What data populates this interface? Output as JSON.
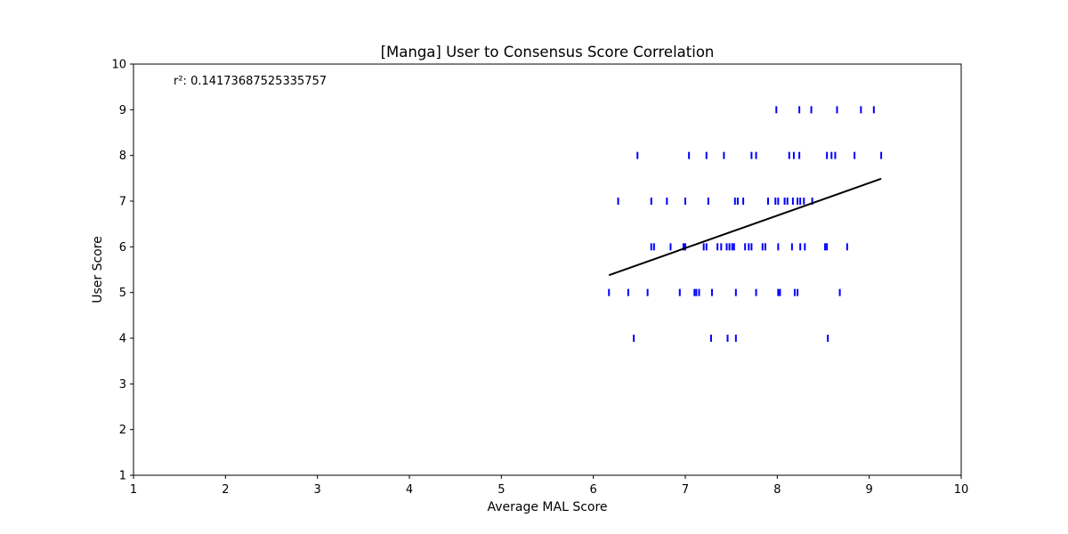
{
  "chart_data": {
    "type": "scatter",
    "title": "[Manga] User to Consensus Score Correlation",
    "xlabel": "Average MAL Score",
    "ylabel": "User Score",
    "xlim": [
      1,
      10
    ],
    "ylim": [
      1,
      10
    ],
    "xticks": [
      1,
      2,
      3,
      4,
      5,
      6,
      7,
      8,
      9,
      10
    ],
    "yticks": [
      1,
      2,
      3,
      4,
      5,
      6,
      7,
      8,
      9,
      10
    ],
    "grid": false,
    "annotation": "r²: 0.14173687525335757",
    "marker": "|",
    "marker_color": "#0000ff",
    "line_color": "#000000",
    "points": [
      {
        "x": 7.99,
        "y": 9
      },
      {
        "x": 8.24,
        "y": 9
      },
      {
        "x": 8.37,
        "y": 9
      },
      {
        "x": 8.65,
        "y": 9
      },
      {
        "x": 8.91,
        "y": 9
      },
      {
        "x": 9.05,
        "y": 9
      },
      {
        "x": 6.48,
        "y": 8
      },
      {
        "x": 7.04,
        "y": 8
      },
      {
        "x": 7.23,
        "y": 8
      },
      {
        "x": 7.42,
        "y": 8
      },
      {
        "x": 7.72,
        "y": 8
      },
      {
        "x": 7.77,
        "y": 8
      },
      {
        "x": 8.13,
        "y": 8
      },
      {
        "x": 8.18,
        "y": 8
      },
      {
        "x": 8.24,
        "y": 8
      },
      {
        "x": 8.54,
        "y": 8
      },
      {
        "x": 8.59,
        "y": 8
      },
      {
        "x": 8.63,
        "y": 8
      },
      {
        "x": 8.84,
        "y": 8
      },
      {
        "x": 9.13,
        "y": 8
      },
      {
        "x": 6.27,
        "y": 7
      },
      {
        "x": 6.63,
        "y": 7
      },
      {
        "x": 6.8,
        "y": 7
      },
      {
        "x": 7.0,
        "y": 7
      },
      {
        "x": 7.25,
        "y": 7
      },
      {
        "x": 7.54,
        "y": 7
      },
      {
        "x": 7.57,
        "y": 7
      },
      {
        "x": 7.63,
        "y": 7
      },
      {
        "x": 7.9,
        "y": 7
      },
      {
        "x": 7.98,
        "y": 7
      },
      {
        "x": 8.01,
        "y": 7
      },
      {
        "x": 8.08,
        "y": 7
      },
      {
        "x": 8.11,
        "y": 7
      },
      {
        "x": 8.17,
        "y": 7
      },
      {
        "x": 8.22,
        "y": 7
      },
      {
        "x": 8.25,
        "y": 7
      },
      {
        "x": 8.29,
        "y": 7
      },
      {
        "x": 8.38,
        "y": 7
      },
      {
        "x": 6.63,
        "y": 6
      },
      {
        "x": 6.66,
        "y": 6
      },
      {
        "x": 6.84,
        "y": 6
      },
      {
        "x": 6.98,
        "y": 6
      },
      {
        "x": 7.0,
        "y": 6
      },
      {
        "x": 7.2,
        "y": 6
      },
      {
        "x": 7.23,
        "y": 6
      },
      {
        "x": 7.35,
        "y": 6
      },
      {
        "x": 7.39,
        "y": 6
      },
      {
        "x": 7.45,
        "y": 6
      },
      {
        "x": 7.48,
        "y": 6
      },
      {
        "x": 7.51,
        "y": 6
      },
      {
        "x": 7.53,
        "y": 6
      },
      {
        "x": 7.65,
        "y": 6
      },
      {
        "x": 7.69,
        "y": 6
      },
      {
        "x": 7.72,
        "y": 6
      },
      {
        "x": 7.84,
        "y": 6
      },
      {
        "x": 7.87,
        "y": 6
      },
      {
        "x": 8.01,
        "y": 6
      },
      {
        "x": 8.16,
        "y": 6
      },
      {
        "x": 8.25,
        "y": 6
      },
      {
        "x": 8.3,
        "y": 6
      },
      {
        "x": 8.52,
        "y": 6
      },
      {
        "x": 8.54,
        "y": 6
      },
      {
        "x": 8.76,
        "y": 6
      },
      {
        "x": 6.17,
        "y": 5
      },
      {
        "x": 6.38,
        "y": 5
      },
      {
        "x": 6.59,
        "y": 5
      },
      {
        "x": 6.94,
        "y": 5
      },
      {
        "x": 7.1,
        "y": 5
      },
      {
        "x": 7.12,
        "y": 5
      },
      {
        "x": 7.15,
        "y": 5
      },
      {
        "x": 7.29,
        "y": 5
      },
      {
        "x": 7.55,
        "y": 5
      },
      {
        "x": 7.77,
        "y": 5
      },
      {
        "x": 8.01,
        "y": 5
      },
      {
        "x": 8.03,
        "y": 5
      },
      {
        "x": 8.19,
        "y": 5
      },
      {
        "x": 8.22,
        "y": 5
      },
      {
        "x": 8.68,
        "y": 5
      },
      {
        "x": 6.44,
        "y": 4
      },
      {
        "x": 7.28,
        "y": 4
      },
      {
        "x": 7.46,
        "y": 4
      },
      {
        "x": 7.55,
        "y": 4
      },
      {
        "x": 8.55,
        "y": 4
      }
    ],
    "fit_line": {
      "x": [
        6.17,
        9.13
      ],
      "y": [
        5.38,
        7.49
      ]
    }
  }
}
